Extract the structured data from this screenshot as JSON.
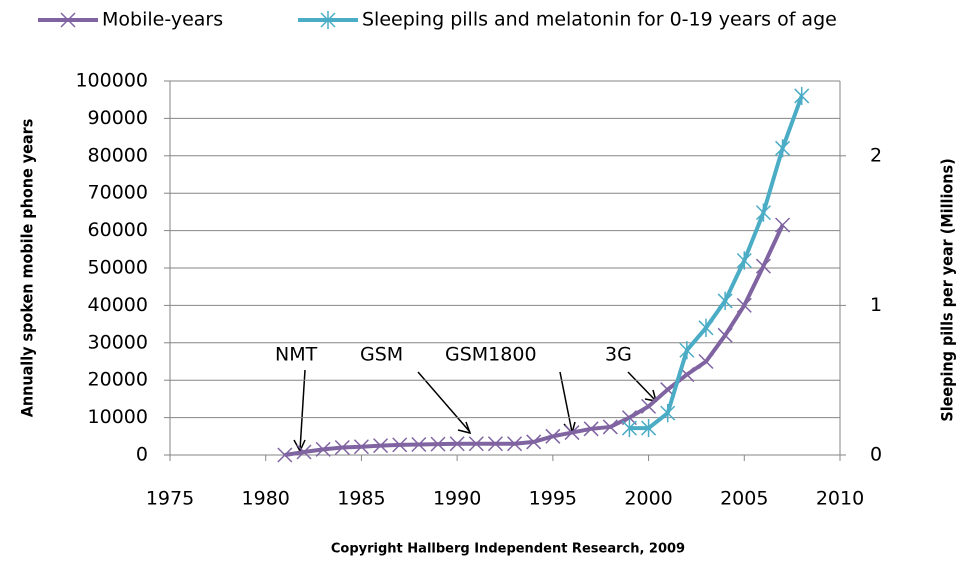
{
  "chart_data": {
    "type": "line",
    "y_label": "Annually spoken mobile phone years",
    "y2_label": "Sleeping pills per year (Millions)",
    "note": "Copyright Hallberg Independent Research, 2009",
    "annotations": [
      "NMT",
      "GSM",
      "GSM1800",
      "3G"
    ],
    "series": [
      {
        "name": "Mobile-years",
        "color": "#8064a2",
        "marker": "x",
        "x": [
          1981,
          1982,
          1983,
          1984,
          1985,
          1986,
          1987,
          1988,
          1989,
          1990,
          1991,
          1992,
          1993,
          1994,
          1995,
          1996,
          1997,
          1998,
          1999,
          2000,
          2001,
          2002,
          2003,
          2004,
          2005,
          2006,
          2007
        ],
        "values": [
          0,
          800,
          1500,
          2000,
          2200,
          2500,
          2700,
          2800,
          2900,
          3000,
          3000,
          3000,
          3000,
          3500,
          5000,
          6000,
          7000,
          7500,
          10000,
          13000,
          17500,
          21500,
          25000,
          32000,
          40000,
          50500,
          61500
        ]
      },
      {
        "name": "Sleeping pills and melatonin for 0-19 years of age",
        "color": "#4bacc6",
        "marker": "asterisk",
        "axis": "y2",
        "x": [
          1999,
          2000,
          2001,
          2002,
          2003,
          2004,
          2005,
          2006,
          2007,
          2008
        ],
        "values": [
          0.18,
          0.18,
          0.28,
          0.7,
          0.85,
          1.03,
          1.3,
          1.62,
          2.05,
          2.4
        ]
      }
    ],
    "xlim": [
      1975,
      2010
    ],
    "xticks": [
      1975,
      1980,
      1985,
      1990,
      1995,
      2000,
      2005,
      2010
    ],
    "ylim": [
      0,
      100000
    ],
    "yticks": [
      0,
      10000,
      20000,
      30000,
      40000,
      50000,
      60000,
      70000,
      80000,
      90000,
      100000
    ],
    "y2lim": [
      0,
      2.5
    ],
    "y2ticks": [
      0,
      1,
      2
    ],
    "grid": true,
    "legend": "top"
  }
}
